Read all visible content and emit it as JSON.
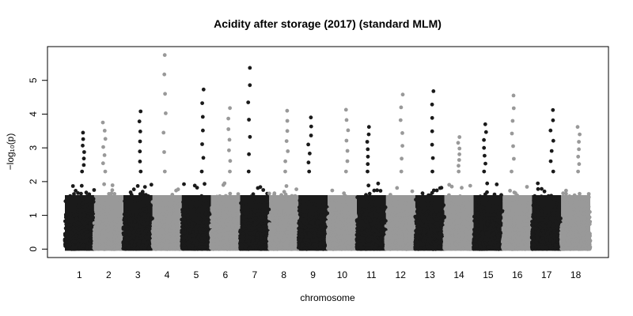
{
  "chart_data": {
    "type": "scatter",
    "title": "Acidity after storage (2017) (standard MLM)",
    "xlabel": "chromosome",
    "ylabel": "−log₁₀(p)",
    "ylim": [
      -0.25,
      6.0
    ],
    "yticks": [
      0,
      1,
      2,
      3,
      4,
      5
    ],
    "grid": false,
    "legend": "none",
    "colors": [
      "#1a1a1a",
      "#999999"
    ],
    "chromosomes": [
      {
        "label": "1",
        "x_start": 0,
        "x_end": 100,
        "peak_max": 3.45
      },
      {
        "label": "2",
        "x_start": 100,
        "x_end": 200,
        "peak_max": 3.75
      },
      {
        "label": "3",
        "x_start": 200,
        "x_end": 300,
        "peak_max": 4.08
      },
      {
        "label": "4",
        "x_start": 300,
        "x_end": 400,
        "peak_max": 5.75
      },
      {
        "label": "5",
        "x_start": 400,
        "x_end": 500,
        "peak_max": 4.73
      },
      {
        "label": "6",
        "x_start": 500,
        "x_end": 600,
        "peak_max": 4.18
      },
      {
        "label": "7",
        "x_start": 600,
        "x_end": 700,
        "peak_max": 5.37
      },
      {
        "label": "8",
        "x_start": 700,
        "x_end": 800,
        "peak_max": 4.1
      },
      {
        "label": "9",
        "x_start": 800,
        "x_end": 900,
        "peak_max": 3.9
      },
      {
        "label": "10",
        "x_start": 900,
        "x_end": 1000,
        "peak_max": 4.13
      },
      {
        "label": "11",
        "x_start": 1000,
        "x_end": 1100,
        "peak_max": 3.62
      },
      {
        "label": "12",
        "x_start": 1100,
        "x_end": 1200,
        "peak_max": 4.58
      },
      {
        "label": "13",
        "x_start": 1200,
        "x_end": 1300,
        "peak_max": 4.68
      },
      {
        "label": "14",
        "x_start": 1300,
        "x_end": 1400,
        "peak_max": 3.32
      },
      {
        "label": "15",
        "x_start": 1400,
        "x_end": 1500,
        "peak_max": 3.7
      },
      {
        "label": "16",
        "x_start": 1500,
        "x_end": 1600,
        "peak_max": 4.55
      },
      {
        "label": "17",
        "x_start": 1600,
        "x_end": 1700,
        "peak_max": 4.12
      },
      {
        "label": "18",
        "x_start": 1700,
        "x_end": 1800,
        "peak_max": 3.62
      }
    ]
  }
}
